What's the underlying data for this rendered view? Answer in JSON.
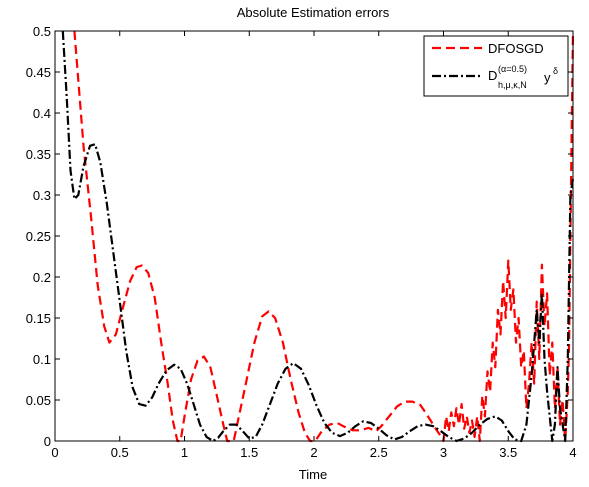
{
  "chart_data": {
    "type": "line",
    "title": "Absolute Estimation errors",
    "xlabel": "Time",
    "ylabel": "",
    "xlim": [
      0,
      4
    ],
    "ylim": [
      0,
      0.5
    ],
    "xticks": [
      "0",
      "0.5",
      "1",
      "1.5",
      "2",
      "2.5",
      "3",
      "3.5",
      "4"
    ],
    "yticks": [
      "0",
      "0.05",
      "0.1",
      "0.15",
      "0.2",
      "0.25",
      "0.3",
      "0.35",
      "0.4",
      "0.45",
      "0.5"
    ],
    "grid": false,
    "legend_position": "top-right",
    "series": [
      {
        "name": "DFOSGD",
        "style": "dashed",
        "color": "#ff0000",
        "points": [
          [
            0.15,
            0.5
          ],
          [
            0.18,
            0.44
          ],
          [
            0.22,
            0.36
          ],
          [
            0.28,
            0.27
          ],
          [
            0.33,
            0.19
          ],
          [
            0.38,
            0.14
          ],
          [
            0.42,
            0.12
          ],
          [
            0.47,
            0.13
          ],
          [
            0.52,
            0.16
          ],
          [
            0.58,
            0.195
          ],
          [
            0.63,
            0.212
          ],
          [
            0.67,
            0.214
          ],
          [
            0.72,
            0.205
          ],
          [
            0.77,
            0.175
          ],
          [
            0.82,
            0.12
          ],
          [
            0.87,
            0.07
          ],
          [
            0.91,
            0.025
          ],
          [
            0.945,
            0.0
          ],
          [
            0.97,
            0.0
          ],
          [
            1.0,
            0.03
          ],
          [
            1.05,
            0.075
          ],
          [
            1.1,
            0.098
          ],
          [
            1.15,
            0.103
          ],
          [
            1.2,
            0.09
          ],
          [
            1.25,
            0.055
          ],
          [
            1.3,
            0.02
          ],
          [
            1.33,
            0.0
          ],
          [
            1.38,
            0.0
          ],
          [
            1.42,
            0.03
          ],
          [
            1.48,
            0.075
          ],
          [
            1.54,
            0.12
          ],
          [
            1.6,
            0.152
          ],
          [
            1.65,
            0.158
          ],
          [
            1.7,
            0.15
          ],
          [
            1.76,
            0.12
          ],
          [
            1.82,
            0.075
          ],
          [
            1.88,
            0.035
          ],
          [
            1.93,
            0.01
          ],
          [
            1.97,
            0.0
          ],
          [
            2.01,
            0.0
          ],
          [
            2.06,
            0.012
          ],
          [
            2.12,
            0.02
          ],
          [
            2.18,
            0.022
          ],
          [
            2.24,
            0.017
          ],
          [
            2.3,
            0.013
          ],
          [
            2.36,
            0.013
          ],
          [
            2.42,
            0.016
          ],
          [
            2.48,
            0.012
          ],
          [
            2.52,
            0.018
          ],
          [
            2.58,
            0.03
          ],
          [
            2.64,
            0.042
          ],
          [
            2.7,
            0.048
          ],
          [
            2.76,
            0.048
          ],
          [
            2.82,
            0.044
          ],
          [
            2.86,
            0.035
          ],
          [
            2.9,
            0.025
          ],
          [
            2.94,
            0.015
          ],
          [
            2.97,
            0.008
          ],
          [
            3.0,
            0.0
          ],
          [
            3.02,
            0.03
          ],
          [
            3.04,
            0.012
          ],
          [
            3.06,
            0.035
          ],
          [
            3.08,
            0.018
          ],
          [
            3.1,
            0.04
          ],
          [
            3.12,
            0.02
          ],
          [
            3.14,
            0.045
          ],
          [
            3.16,
            0.015
          ],
          [
            3.18,
            0.03
          ],
          [
            3.2,
            0.01
          ],
          [
            3.22,
            0.025
          ],
          [
            3.24,
            0.005
          ],
          [
            3.26,
            0.03
          ],
          [
            3.28,
            0.0
          ],
          [
            3.3,
            0.055
          ],
          [
            3.32,
            0.03
          ],
          [
            3.34,
            0.085
          ],
          [
            3.36,
            0.06
          ],
          [
            3.38,
            0.12
          ],
          [
            3.4,
            0.09
          ],
          [
            3.42,
            0.16
          ],
          [
            3.44,
            0.13
          ],
          [
            3.46,
            0.195
          ],
          [
            3.48,
            0.15
          ],
          [
            3.5,
            0.22
          ],
          [
            3.52,
            0.16
          ],
          [
            3.54,
            0.185
          ],
          [
            3.56,
            0.12
          ],
          [
            3.58,
            0.15
          ],
          [
            3.6,
            0.09
          ],
          [
            3.62,
            0.11
          ],
          [
            3.64,
            0.04
          ],
          [
            3.66,
            0.07
          ],
          [
            3.68,
            0.12
          ],
          [
            3.7,
            0.07
          ],
          [
            3.72,
            0.17
          ],
          [
            3.74,
            0.1
          ],
          [
            3.76,
            0.215
          ],
          [
            3.78,
            0.14
          ],
          [
            3.8,
            0.18
          ],
          [
            3.82,
            0.08
          ],
          [
            3.84,
            0.12
          ],
          [
            3.86,
            0.04
          ],
          [
            3.88,
            0.09
          ],
          [
            3.9,
            0.02
          ],
          [
            3.92,
            0.05
          ],
          [
            3.94,
            0.0
          ],
          [
            3.96,
            0.06
          ],
          [
            3.97,
            0.12
          ],
          [
            3.98,
            0.25
          ],
          [
            3.99,
            0.38
          ],
          [
            4.0,
            0.5
          ]
        ]
      },
      {
        "name": "D_{h,μ,κ,N}^{(α=0.5)} y^δ",
        "style": "dashdot",
        "color": "#000000",
        "points": [
          [
            0.06,
            0.5
          ],
          [
            0.09,
            0.42
          ],
          [
            0.12,
            0.33
          ],
          [
            0.15,
            0.295
          ],
          [
            0.18,
            0.3
          ],
          [
            0.22,
            0.335
          ],
          [
            0.27,
            0.36
          ],
          [
            0.31,
            0.362
          ],
          [
            0.35,
            0.34
          ],
          [
            0.4,
            0.29
          ],
          [
            0.45,
            0.23
          ],
          [
            0.5,
            0.17
          ],
          [
            0.55,
            0.11
          ],
          [
            0.6,
            0.065
          ],
          [
            0.65,
            0.045
          ],
          [
            0.7,
            0.043
          ],
          [
            0.75,
            0.053
          ],
          [
            0.8,
            0.07
          ],
          [
            0.86,
            0.086
          ],
          [
            0.92,
            0.093
          ],
          [
            0.97,
            0.088
          ],
          [
            1.02,
            0.07
          ],
          [
            1.07,
            0.045
          ],
          [
            1.12,
            0.02
          ],
          [
            1.17,
            0.005
          ],
          [
            1.22,
            0.0
          ],
          [
            1.26,
            0.004
          ],
          [
            1.3,
            0.012
          ],
          [
            1.35,
            0.02
          ],
          [
            1.4,
            0.02
          ],
          [
            1.45,
            0.012
          ],
          [
            1.5,
            0.003
          ],
          [
            1.55,
            0.005
          ],
          [
            1.6,
            0.02
          ],
          [
            1.66,
            0.045
          ],
          [
            1.72,
            0.07
          ],
          [
            1.78,
            0.088
          ],
          [
            1.84,
            0.095
          ],
          [
            1.9,
            0.088
          ],
          [
            1.96,
            0.068
          ],
          [
            2.02,
            0.043
          ],
          [
            2.08,
            0.022
          ],
          [
            2.14,
            0.01
          ],
          [
            2.2,
            0.006
          ],
          [
            2.26,
            0.01
          ],
          [
            2.32,
            0.018
          ],
          [
            2.38,
            0.024
          ],
          [
            2.44,
            0.022
          ],
          [
            2.5,
            0.015
          ],
          [
            2.56,
            0.007
          ],
          [
            2.62,
            0.002
          ],
          [
            2.68,
            0.005
          ],
          [
            2.74,
            0.012
          ],
          [
            2.8,
            0.018
          ],
          [
            2.86,
            0.02
          ],
          [
            2.92,
            0.018
          ],
          [
            2.98,
            0.012
          ],
          [
            3.04,
            0.005
          ],
          [
            3.1,
            0.0
          ],
          [
            3.16,
            0.003
          ],
          [
            3.22,
            0.01
          ],
          [
            3.28,
            0.02
          ],
          [
            3.34,
            0.027
          ],
          [
            3.4,
            0.03
          ],
          [
            3.45,
            0.025
          ],
          [
            3.5,
            0.012
          ],
          [
            3.55,
            0.002
          ],
          [
            3.6,
            0.0
          ],
          [
            3.64,
            0.02
          ],
          [
            3.66,
            0.05
          ],
          [
            3.68,
            0.08
          ],
          [
            3.7,
            0.12
          ],
          [
            3.72,
            0.16
          ],
          [
            3.74,
            0.12
          ],
          [
            3.76,
            0.18
          ],
          [
            3.78,
            0.1
          ],
          [
            3.8,
            0.06
          ],
          [
            3.82,
            0.03
          ],
          [
            3.84,
            0.0
          ],
          [
            3.86,
            0.02
          ],
          [
            3.88,
            0.09
          ],
          [
            3.9,
            0.04
          ],
          [
            3.92,
            0.02
          ],
          [
            3.94,
            0.0
          ],
          [
            3.96,
            0.1
          ],
          [
            3.97,
            0.2
          ],
          [
            3.98,
            0.3
          ],
          [
            4.0,
            0.32
          ]
        ]
      }
    ]
  },
  "legend": {
    "entry1": "DFOSGD",
    "entry2_base": "D",
    "entry2_sup": "(α=0.5)",
    "entry2_sub": "h,μ,κ,N",
    "entry2_y": "y",
    "entry2_exp": "δ"
  }
}
